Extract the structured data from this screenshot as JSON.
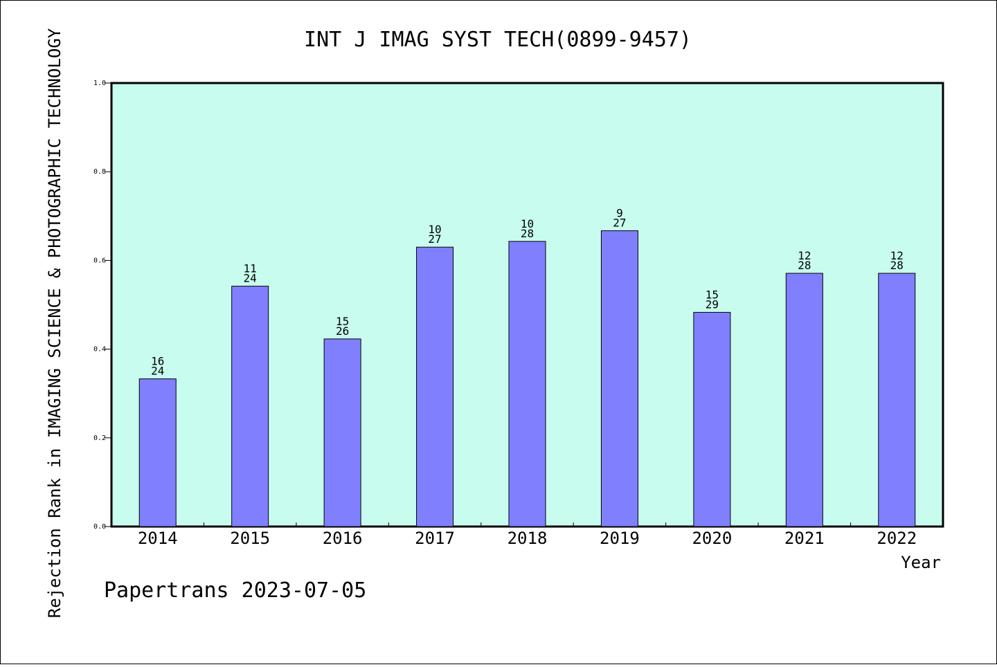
{
  "chart_data": {
    "type": "bar",
    "title": "INT J IMAG SYST TECH(0899-9457)",
    "xlabel": "Year",
    "ylabel": "Rejection Rank in IMAGING SCIENCE & PHOTOGRAPHIC TECHNOLOGY",
    "ylim": [
      0,
      1.0
    ],
    "yticks": [
      "0.0",
      "0.2",
      "0.4",
      "0.6",
      "0.8",
      "1.0"
    ],
    "categories": [
      "2014",
      "2015",
      "2016",
      "2017",
      "2018",
      "2019",
      "2020",
      "2021",
      "2022"
    ],
    "values": [
      0.333,
      0.542,
      0.423,
      0.63,
      0.643,
      0.667,
      0.483,
      0.571,
      0.571
    ],
    "rank": [
      "16",
      "11",
      "15",
      "10",
      "10",
      "9",
      "15",
      "12",
      "12"
    ],
    "total": [
      "24",
      "24",
      "26",
      "27",
      "28",
      "27",
      "29",
      "28",
      "28"
    ],
    "grid": false,
    "colors": {
      "plot_background": "#c8fcee",
      "bar": "#8080ff",
      "bar_edge": "#000000"
    }
  },
  "footer": "Papertrans 2023-07-05"
}
